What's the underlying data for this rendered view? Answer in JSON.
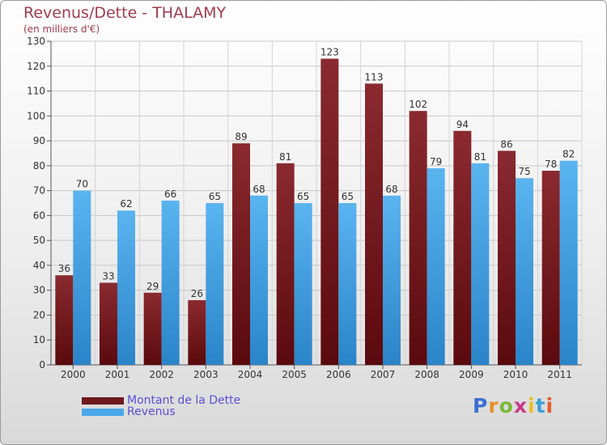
{
  "header": {
    "title": "Revenus/Dette - THALAMY",
    "subtitle": "(en milliers d'€)"
  },
  "colors": {
    "dette": "#6e1a1f",
    "revenus": "#4aa8e8",
    "title": "#a23b4e",
    "legend_text": "#5a50d8"
  },
  "legend": {
    "dette_label": "Montant de la Dette",
    "revenus_label": "Revenus"
  },
  "logo": {
    "letters": [
      "P",
      "r",
      "o",
      "x",
      "i",
      "t",
      "i"
    ],
    "colors": [
      "#3a6fd0",
      "#e8902a",
      "#7ab83a",
      "#c83a8a",
      "#e8c02a",
      "#3aa0d8",
      "#e85a2a"
    ]
  },
  "chart_data": {
    "type": "bar",
    "categories": [
      "2000",
      "2001",
      "2002",
      "2003",
      "2004",
      "2005",
      "2006",
      "2007",
      "2008",
      "2009",
      "2010",
      "2011"
    ],
    "series": [
      {
        "name": "Montant de la Dette",
        "values": [
          36,
          33,
          29,
          26,
          89,
          81,
          123,
          113,
          102,
          94,
          86,
          78
        ]
      },
      {
        "name": "Revenus",
        "values": [
          70,
          62,
          66,
          65,
          68,
          65,
          65,
          68,
          79,
          81,
          75,
          82
        ]
      }
    ],
    "yticks": [
      0,
      10,
      20,
      30,
      40,
      50,
      60,
      70,
      80,
      90,
      100,
      110,
      120,
      130
    ],
    "ylim": [
      0,
      130
    ],
    "grid": true,
    "legend_position": "bottom-left"
  }
}
